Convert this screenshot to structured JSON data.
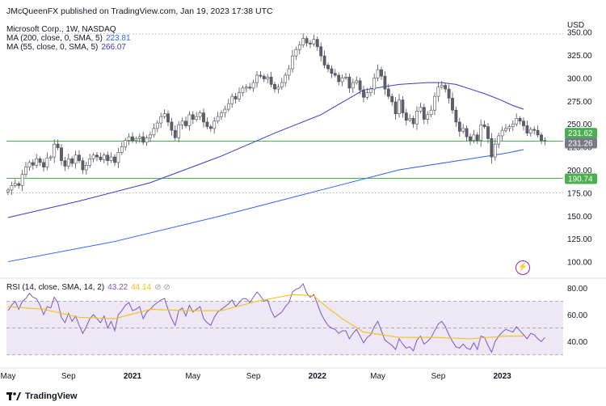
{
  "header": {
    "published": "JMcQueenFX published on TradingView.com, Jan 19, 2023 17:38 UTC",
    "symbol": "Microsoft Corp., 1W, NASDAQ",
    "ma200_label": "MA (200, close, 0, SMA, 5)",
    "ma200_value": "223.81",
    "ma55_label": "MA (55, close, 0, SMA, 5)",
    "ma55_value": "266.07",
    "rsi_label": "RSI (14, close, SMA, 14, 2)",
    "rsi_value": "43.22",
    "rsi_ma_value": "44.14",
    "eye_icons": "⊘ ⊘"
  },
  "footer": {
    "logo_text": "TradingView"
  },
  "colors": {
    "candle_up": "#ffffff",
    "candle_down": "#5d606b",
    "candle_outline": "#4a4d56",
    "ma200": "#2962ff",
    "ma55": "#3838c8",
    "level_line": "#4caf50",
    "rsi_line": "#7e57c2",
    "rsi_ma": "#f4c30f",
    "rsi_band": "#ede7f6"
  },
  "chart_data": [
    {
      "type": "candlestick",
      "title": "Microsoft Corp., 1W, NASDAQ",
      "currency": "USD",
      "ylim": [
        82,
        362
      ],
      "y_ticks": [
        100,
        125,
        150,
        175,
        200,
        225,
        250,
        275,
        300,
        325,
        350
      ],
      "y_tick_labels": [
        "100.00",
        "125.00",
        "150.00",
        "175.00",
        "200.00",
        "225.00",
        "250.00",
        "275.00",
        "300.00",
        "325.00",
        "350.00"
      ],
      "x_labels": [
        {
          "label": "May",
          "week": 0
        },
        {
          "label": "Sep",
          "week": 17
        },
        {
          "label": "2021",
          "week": 35
        },
        {
          "label": "May",
          "week": 52
        },
        {
          "label": "Sep",
          "week": 69
        },
        {
          "label": "2022",
          "week": 87
        },
        {
          "label": "May",
          "week": 104
        },
        {
          "label": "Sep",
          "week": 121
        },
        {
          "label": "2023",
          "week": 139
        }
      ],
      "price_labels": [
        {
          "value": 231.62,
          "text": "231.62",
          "bg": "#4caf50"
        },
        {
          "value": 231.26,
          "text": "231.26",
          "bg": "#787b86"
        },
        {
          "value": 190.74,
          "text": "190.74",
          "bg": "#4caf50"
        }
      ],
      "horizontal_levels": [
        {
          "value": 231.26,
          "style": "solid",
          "color": "#4caf50"
        },
        {
          "value": 190.74,
          "style": "solid",
          "color": "#4caf50"
        },
        {
          "value": 348,
          "style": "dotted",
          "color": "#9598a1"
        },
        {
          "value": 175,
          "style": "dotted",
          "color": "#9598a1"
        }
      ],
      "closes": [
        178,
        183,
        185,
        183,
        195,
        203,
        208,
        205,
        212,
        208,
        203,
        213,
        214,
        228,
        224,
        210,
        204,
        212,
        207,
        216,
        210,
        200,
        205,
        212,
        216,
        214,
        211,
        216,
        210,
        214,
        208,
        219,
        225,
        232,
        236,
        232,
        234,
        236,
        230,
        235,
        238,
        245,
        251,
        258,
        261,
        252,
        243,
        235,
        249,
        253,
        248,
        260,
        255,
        258,
        262,
        252,
        247,
        245,
        253,
        258,
        262,
        266,
        272,
        280,
        277,
        284,
        289,
        290,
        289,
        295,
        303,
        302,
        299,
        301,
        293,
        288,
        290,
        295,
        303,
        310,
        324,
        331,
        336,
        343,
        338,
        337,
        342,
        334,
        324,
        314,
        310,
        305,
        303,
        296,
        300,
        301,
        289,
        295,
        297,
        287,
        279,
        284,
        288,
        300,
        309,
        302,
        288,
        280,
        274,
        261,
        276,
        262,
        254,
        256,
        250,
        264,
        268,
        255,
        260,
        265,
        280,
        290,
        292,
        288,
        278,
        265,
        252,
        242,
        245,
        236,
        232,
        238,
        232,
        249,
        247,
        234,
        214,
        228,
        237,
        243,
        245,
        247,
        250,
        256,
        253,
        248,
        240,
        244,
        243,
        238,
        232,
        231.26
      ],
      "series": [
        {
          "name": "MA (200, close, 0, SMA, 5)",
          "x": [
            0,
            30,
            60,
            90,
            110,
            130,
            140,
            145
          ],
          "values": [
            100,
            122,
            150,
            180,
            200,
            212,
            218,
            222
          ]
        },
        {
          "name": "MA (55, close, 0, SMA, 5)",
          "x": [
            0,
            20,
            40,
            60,
            75,
            88,
            100,
            110,
            118,
            122,
            126,
            130,
            134,
            138,
            142,
            145
          ],
          "values": [
            148,
            166,
            186,
            215,
            240,
            260,
            287,
            293,
            295,
            295,
            293,
            288,
            283,
            277,
            270,
            266
          ]
        }
      ]
    },
    {
      "type": "line",
      "title": "RSI (14, close, SMA, 14, 2)",
      "ylim": [
        22,
        86
      ],
      "y_ticks": [
        40,
        60,
        80
      ],
      "y_tick_labels": [
        "40.00",
        "60.00",
        "80.00"
      ],
      "bands": {
        "upper": 70,
        "middle": 50,
        "lower": 30
      },
      "series": [
        {
          "name": "RSI",
          "values": [
            63,
            67,
            70,
            64,
            70,
            72,
            76,
            73,
            72,
            67,
            60,
            66,
            65,
            73,
            69,
            58,
            54,
            61,
            55,
            59,
            52,
            46,
            51,
            57,
            60,
            57,
            54,
            59,
            50,
            55,
            48,
            60,
            63,
            67,
            69,
            63,
            64,
            66,
            57,
            62,
            64,
            67,
            69,
            71,
            72,
            64,
            57,
            52,
            63,
            65,
            59,
            67,
            62,
            64,
            66,
            57,
            54,
            52,
            58,
            62,
            64,
            66,
            68,
            71,
            66,
            69,
            72,
            72,
            69,
            73,
            77,
            74,
            70,
            71,
            63,
            58,
            60,
            62,
            66,
            69,
            77,
            79,
            80,
            83,
            76,
            73,
            75,
            68,
            61,
            56,
            52,
            50,
            49,
            46,
            48,
            48,
            42,
            46,
            49,
            44,
            39,
            43,
            45,
            51,
            55,
            48,
            41,
            39,
            37,
            34,
            42,
            38,
            35,
            36,
            33,
            41,
            44,
            38,
            40,
            43,
            48,
            53,
            55,
            51,
            45,
            40,
            36,
            35,
            38,
            35,
            34,
            39,
            34,
            44,
            43,
            37,
            32,
            40,
            44,
            47,
            49,
            48,
            47,
            51,
            48,
            45,
            42,
            46,
            45,
            42,
            40,
            43
          ]
        },
        {
          "name": "RSI-based MA",
          "x": [
            0,
            10,
            20,
            30,
            40,
            50,
            60,
            70,
            80,
            86,
            90,
            94,
            100,
            110,
            120,
            130,
            140,
            145
          ],
          "values": [
            66,
            64,
            58,
            57,
            64,
            63,
            63,
            70,
            75,
            74,
            65,
            57,
            47,
            43,
            43,
            42,
            44,
            44
          ]
        }
      ]
    }
  ]
}
